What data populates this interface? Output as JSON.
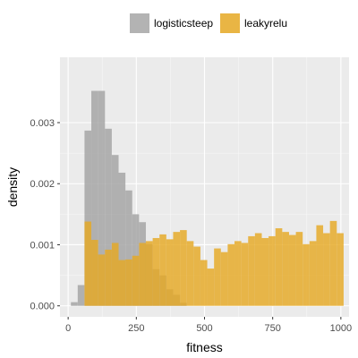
{
  "chart_data": {
    "type": "histogram",
    "xlabel": "fitness",
    "ylabel": "density",
    "xlim": [
      -30,
      1030
    ],
    "ylim": [
      -0.00018,
      0.00407
    ],
    "x_ticks": [
      0,
      250,
      500,
      750,
      1000
    ],
    "x_tick_labels": [
      "0",
      "250",
      "500",
      "750",
      "1000"
    ],
    "y_ticks": [
      0,
      0.001,
      0.002,
      0.003
    ],
    "y_tick_labels": [
      "0.000",
      "0.001",
      "0.002",
      "0.003"
    ],
    "grid": true,
    "legend_position": "top",
    "bin_start": 10,
    "bin_width": 25,
    "series": [
      {
        "name": "logisticsteep",
        "color": "#A6A6A6",
        "values": [
          6e-05,
          0.00034,
          0.00287,
          0.00352,
          0.00352,
          0.0029,
          0.00247,
          0.00218,
          0.00189,
          0.0015,
          0.00137,
          0.00101,
          0.0006,
          0.0005,
          0.00027,
          0.00018,
          5e-05,
          0,
          0,
          0,
          0,
          0,
          0,
          0,
          0,
          0,
          0,
          0,
          0,
          0,
          0,
          0,
          0,
          0,
          0,
          0,
          0,
          0,
          0,
          0
        ]
      },
      {
        "name": "leakyrelu",
        "color": "#E5A823",
        "values": [
          0,
          0,
          0.00138,
          0.00108,
          0.00084,
          0.00092,
          0.00103,
          0.00075,
          0.00076,
          0.00082,
          0.00103,
          0.00106,
          0.00111,
          0.00117,
          0.00109,
          0.00121,
          0.00124,
          0.00106,
          0.00097,
          0.00075,
          0.00061,
          0.00094,
          0.00088,
          0.00101,
          0.00106,
          0.00103,
          0.00114,
          0.00119,
          0.00111,
          0.00114,
          0.00127,
          0.00121,
          0.00116,
          0.00121,
          0.00101,
          0.00106,
          0.00132,
          0.00119,
          0.00139,
          0.00119
        ]
      }
    ]
  }
}
